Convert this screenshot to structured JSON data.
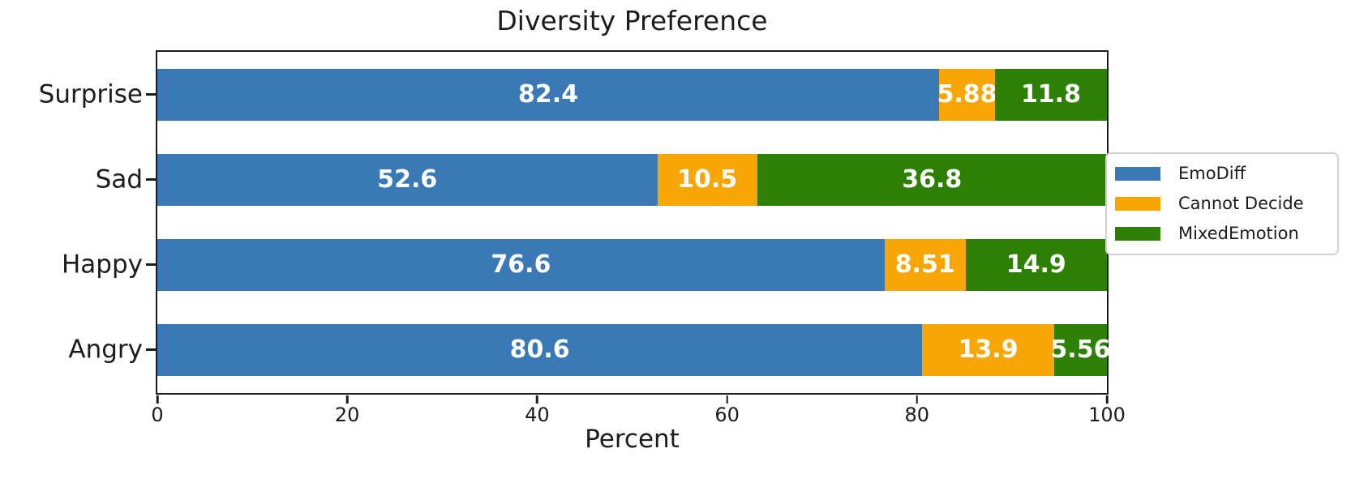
{
  "chart_data": {
    "type": "bar",
    "orientation": "horizontal",
    "stacked": true,
    "title": "Diversity Preference",
    "xlabel": "Percent",
    "categories": [
      "Surprise",
      "Sad",
      "Happy",
      "Angry"
    ],
    "series": [
      {
        "name": "EmoDiff",
        "color": "#3a79b5",
        "values": [
          82.4,
          52.6,
          76.6,
          80.6
        ]
      },
      {
        "name": "Cannot Decide",
        "color": "#f7a605",
        "values": [
          5.88,
          10.5,
          8.51,
          13.9
        ]
      },
      {
        "name": "MixedEmotion",
        "color": "#2e8004",
        "values": [
          11.8,
          36.8,
          14.9,
          5.56
        ]
      }
    ],
    "bar_labels": [
      [
        "82.4",
        "5.88",
        "11.8"
      ],
      [
        "52.6",
        "10.5",
        "36.8"
      ],
      [
        "76.6",
        "8.51",
        "14.9"
      ],
      [
        "80.6",
        "13.9",
        "5.56"
      ]
    ],
    "xticks": [
      "0",
      "20",
      "40",
      "60",
      "80",
      "100"
    ],
    "xtick_values": [
      0,
      20,
      40,
      60,
      80,
      100
    ],
    "xlim": [
      0,
      100
    ],
    "grid": false,
    "legend_position": "right",
    "bar_label_color": "#ffffff",
    "axis_color": "#1c1c1c"
  }
}
